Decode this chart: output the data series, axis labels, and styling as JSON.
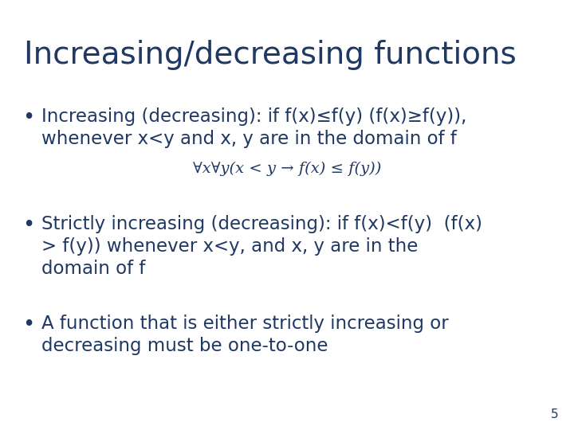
{
  "title": "Increasing/decreasing functions",
  "title_color": "#1F3864",
  "title_fontsize": 28,
  "background_color": "#ffffff",
  "text_color": "#1F3864",
  "bullet1_line1": "Increasing (decreasing): if f(x)≤f(y) (f(x)≥f(y)),",
  "bullet1_line2": "whenever x<y and x, y are in the domain of f",
  "formula": "∀x∀y(x < y → f(x) ≤ f(y))",
  "bullet2_line1": "Strictly increasing (decreasing): if f(x)<f(y)  (f(x)",
  "bullet2_line2": "> f(y)) whenever x<y, and x, y are in the",
  "bullet2_line3": "domain of f",
  "bullet3_line1": "A function that is either strictly increasing or",
  "bullet3_line2": "decreasing must be one-to-one",
  "page_number": "5",
  "body_fontsize": 16.5,
  "formula_fontsize": 14,
  "page_num_fontsize": 11
}
